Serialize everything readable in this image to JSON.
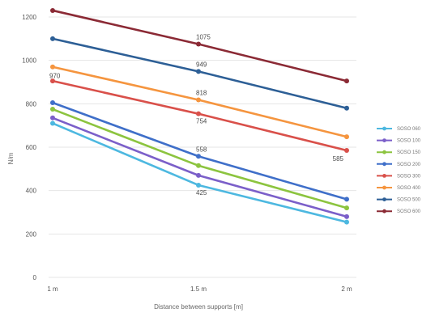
{
  "chart_data": {
    "type": "line",
    "title": "",
    "xlabel": "Distance between supports [m]",
    "ylabel": "N/m",
    "categories": [
      "1 m",
      "1.5 m",
      "2 m"
    ],
    "ylim": [
      0,
      1200
    ],
    "yticks": [
      0,
      200,
      400,
      600,
      800,
      1000,
      1200
    ],
    "grid": true,
    "legend": "right",
    "series": [
      {
        "name": "SOSO 060",
        "color": "#4db8e0",
        "values": [
          710,
          425,
          255
        ],
        "labels": [
          "",
          "425",
          ""
        ]
      },
      {
        "name": "SOSO 100",
        "color": "#7b5fc9",
        "values": [
          735,
          470,
          280
        ],
        "labels": [
          "",
          "",
          ""
        ]
      },
      {
        "name": "SOSO 150",
        "color": "#8cc43f",
        "values": [
          775,
          515,
          320
        ],
        "labels": [
          "",
          "",
          ""
        ]
      },
      {
        "name": "SOSO 200",
        "color": "#3f6fc9",
        "values": [
          805,
          558,
          360
        ],
        "labels": [
          "",
          "558",
          ""
        ]
      },
      {
        "name": "SOSO 300",
        "color": "#d9504a",
        "values": [
          905,
          754,
          585
        ],
        "labels": [
          "",
          "754",
          "585"
        ]
      },
      {
        "name": "SOSO 400",
        "color": "#f5953f",
        "values": [
          970,
          818,
          648
        ],
        "labels": [
          "",
          "818",
          ""
        ]
      },
      {
        "name": "SOSO 500",
        "color": "#2d5f96",
        "values": [
          1100,
          949,
          780
        ],
        "labels": [
          "",
          "949",
          ""
        ]
      },
      {
        "name": "SOSO 600",
        "color": "#8b2a35",
        "values": [
          1230,
          1075,
          905
        ],
        "labels": [
          "",
          "1075",
          ""
        ]
      }
    ],
    "annotations": [
      {
        "text": "970",
        "category": "1 m",
        "value": 970
      }
    ]
  }
}
